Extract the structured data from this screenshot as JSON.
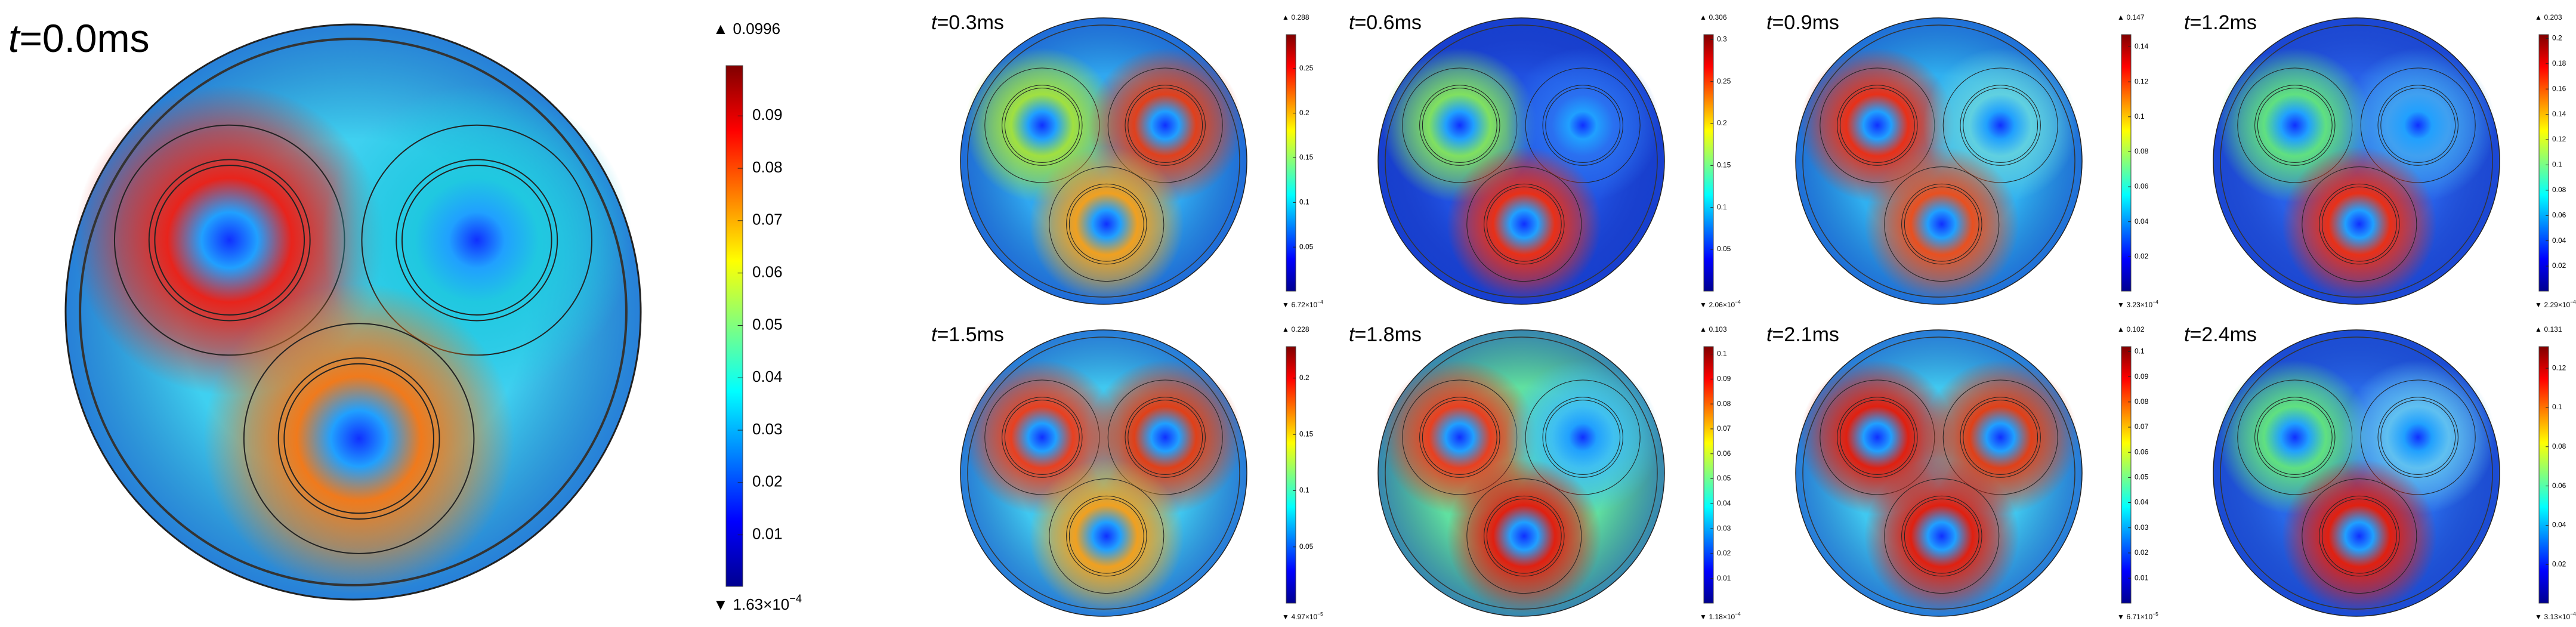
{
  "markers": {
    "max": "▲",
    "min": "▼"
  },
  "panels": [
    {
      "time": {
        "var": "t",
        "text": "=0.0ms"
      },
      "colorbar": {
        "max": 0.0996,
        "min": {
          "value": 0.000163,
          "mantissa": "1.63×10",
          "exponent": "−4"
        },
        "ticks": [
          0.01,
          0.02,
          0.03,
          0.04,
          0.05,
          0.06,
          0.07,
          0.08,
          0.09
        ]
      }
    },
    {
      "time": {
        "var": "t",
        "text": "=0.3ms"
      },
      "colorbar": {
        "max": 0.288,
        "min": {
          "value": 0.000672,
          "mantissa": "6.72×10",
          "exponent": "−4"
        },
        "ticks": [
          0.05,
          0.1,
          0.15,
          0.2,
          0.25
        ]
      }
    },
    {
      "time": {
        "var": "t",
        "text": "=0.6ms"
      },
      "colorbar": {
        "max": 0.306,
        "min": {
          "value": 0.000206,
          "mantissa": "2.06×10",
          "exponent": "−4"
        },
        "ticks": [
          0.05,
          0.1,
          0.15,
          0.2,
          0.25,
          0.3
        ]
      }
    },
    {
      "time": {
        "var": "t",
        "text": "=0.9ms"
      },
      "colorbar": {
        "max": 0.147,
        "min": {
          "value": 0.000323,
          "mantissa": "3.23×10",
          "exponent": "−4"
        },
        "ticks": [
          0.02,
          0.04,
          0.06,
          0.08,
          0.1,
          0.12,
          0.14
        ]
      }
    },
    {
      "time": {
        "var": "t",
        "text": "=1.2ms"
      },
      "colorbar": {
        "max": 0.203,
        "min": {
          "value": 0.000229,
          "mantissa": "2.29×10",
          "exponent": "−4"
        },
        "ticks": [
          0.02,
          0.04,
          0.06,
          0.08,
          0.1,
          0.12,
          0.14,
          0.16,
          0.18,
          0.2
        ]
      }
    },
    {
      "time": {
        "var": "t",
        "text": "=1.5ms"
      },
      "colorbar": {
        "max": 0.228,
        "min": {
          "value": 4.97e-05,
          "mantissa": "4.97×10",
          "exponent": "−5"
        },
        "ticks": [
          0.05,
          0.1,
          0.15,
          0.2
        ]
      }
    },
    {
      "time": {
        "var": "t",
        "text": "=1.8ms"
      },
      "colorbar": {
        "max": 0.103,
        "min": {
          "value": 0.000118,
          "mantissa": "1.18×10",
          "exponent": "−4"
        },
        "ticks": [
          0.01,
          0.02,
          0.03,
          0.04,
          0.05,
          0.06,
          0.07,
          0.08,
          0.09,
          0.1
        ]
      }
    },
    {
      "time": {
        "var": "t",
        "text": "=2.1ms"
      },
      "colorbar": {
        "max": 0.102,
        "min": {
          "value": 6.71e-05,
          "mantissa": "6.71×10",
          "exponent": "−5"
        },
        "ticks": [
          0.01,
          0.02,
          0.03,
          0.04,
          0.05,
          0.06,
          0.07,
          0.08,
          0.09,
          0.1
        ]
      }
    },
    {
      "time": {
        "var": "t",
        "text": "=2.4ms"
      },
      "colorbar": {
        "max": 0.131,
        "min": {
          "value": 0.000313,
          "mantissa": "3.13×10",
          "exponent": "−4"
        },
        "ticks": [
          0.02,
          0.04,
          0.06,
          0.08,
          0.1,
          0.12
        ]
      }
    }
  ]
}
